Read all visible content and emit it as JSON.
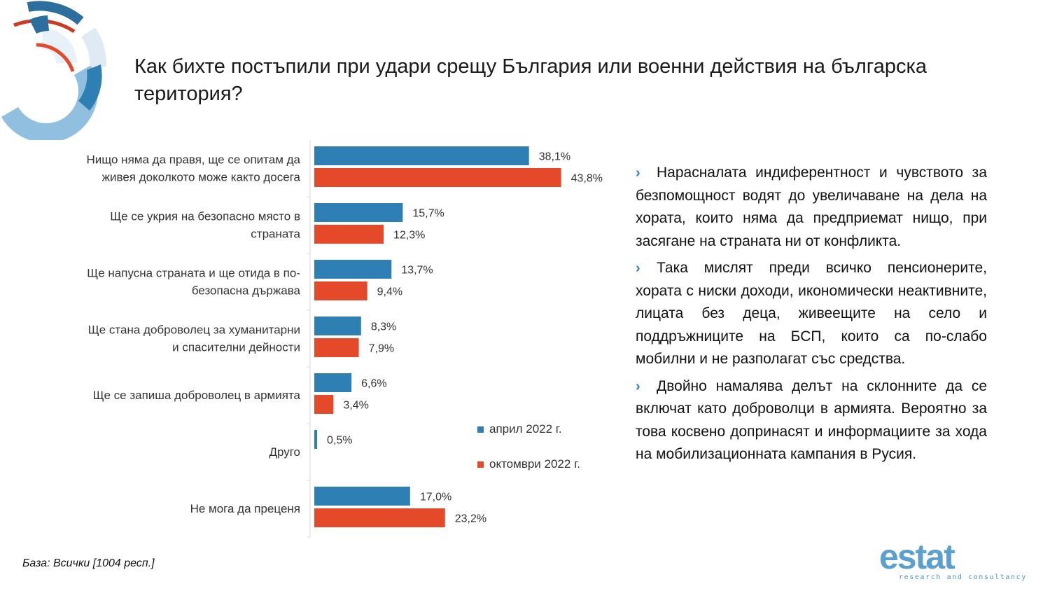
{
  "title": "Как бихте постъпили при удари срещу България или военни действия на българска територия?",
  "base_note": "База: Всички [1004 респ.]",
  "logo": {
    "wordmark": "estat",
    "tagline": "research and consultancy"
  },
  "colors": {
    "april": "#2e7fb3",
    "october": "#e4492a",
    "bullet_marker": "#2e7fb9"
  },
  "chart_data": {
    "type": "bar",
    "orientation": "horizontal",
    "categories": [
      [
        "Нищо няма да правя, ще се опитам да",
        "живея доколкото може както досега"
      ],
      [
        "Ще се укрия на безопасно място в",
        "страната"
      ],
      [
        "Ще напусна страната и ще отида в по-",
        "безопасна държава"
      ],
      [
        "Ще стана доброволец за хуманитарни",
        "и спасителни дейности"
      ],
      [
        "Ще се запиша доброволец в армията"
      ],
      [
        "Друго"
      ],
      [
        "Не мога да преценя"
      ]
    ],
    "series": [
      {
        "name": "април 2022 г.",
        "color": "#2e7fb3",
        "values": [
          38.1,
          15.7,
          13.7,
          8.3,
          6.6,
          0.5,
          17.0
        ],
        "labels": [
          "38,1%",
          "15,7%",
          "13,7%",
          "8,3%",
          "6,6%",
          "0,5%",
          "17,0%"
        ]
      },
      {
        "name": "октомври 2022 г.",
        "color": "#e4492a",
        "values": [
          43.8,
          12.3,
          9.4,
          7.9,
          3.4,
          null,
          23.2
        ],
        "labels": [
          "43,8%",
          "12,3%",
          "9,4%",
          "7,9%",
          "3,4%",
          "",
          "23,2%"
        ]
      }
    ],
    "unit": "%",
    "xlim": [
      0,
      50
    ],
    "legend_position": "right"
  },
  "bullets": [
    {
      "marker": "›",
      "text": "Нарасналата индиферентност и чувството за безпомощност водят до увеличаване на дела на хората, които няма да предприемат нищо, при засягане на страната ни от конфликта."
    },
    {
      "marker": "›",
      "text": "Така мислят преди всичко пенсионерите, хората с ниски доходи, икономически неактивните, лицата без деца, живеещите на село и поддръжниците на БСП, които са по-слабо мобилни и не разполагат със средства."
    },
    {
      "marker": "›",
      "text": "Двойно намалява делът на склонните да се включат като доброволци в армията. Вероятно за това косвено допринасят и информациите за хода на мобилизационната кампания в Русия."
    }
  ]
}
